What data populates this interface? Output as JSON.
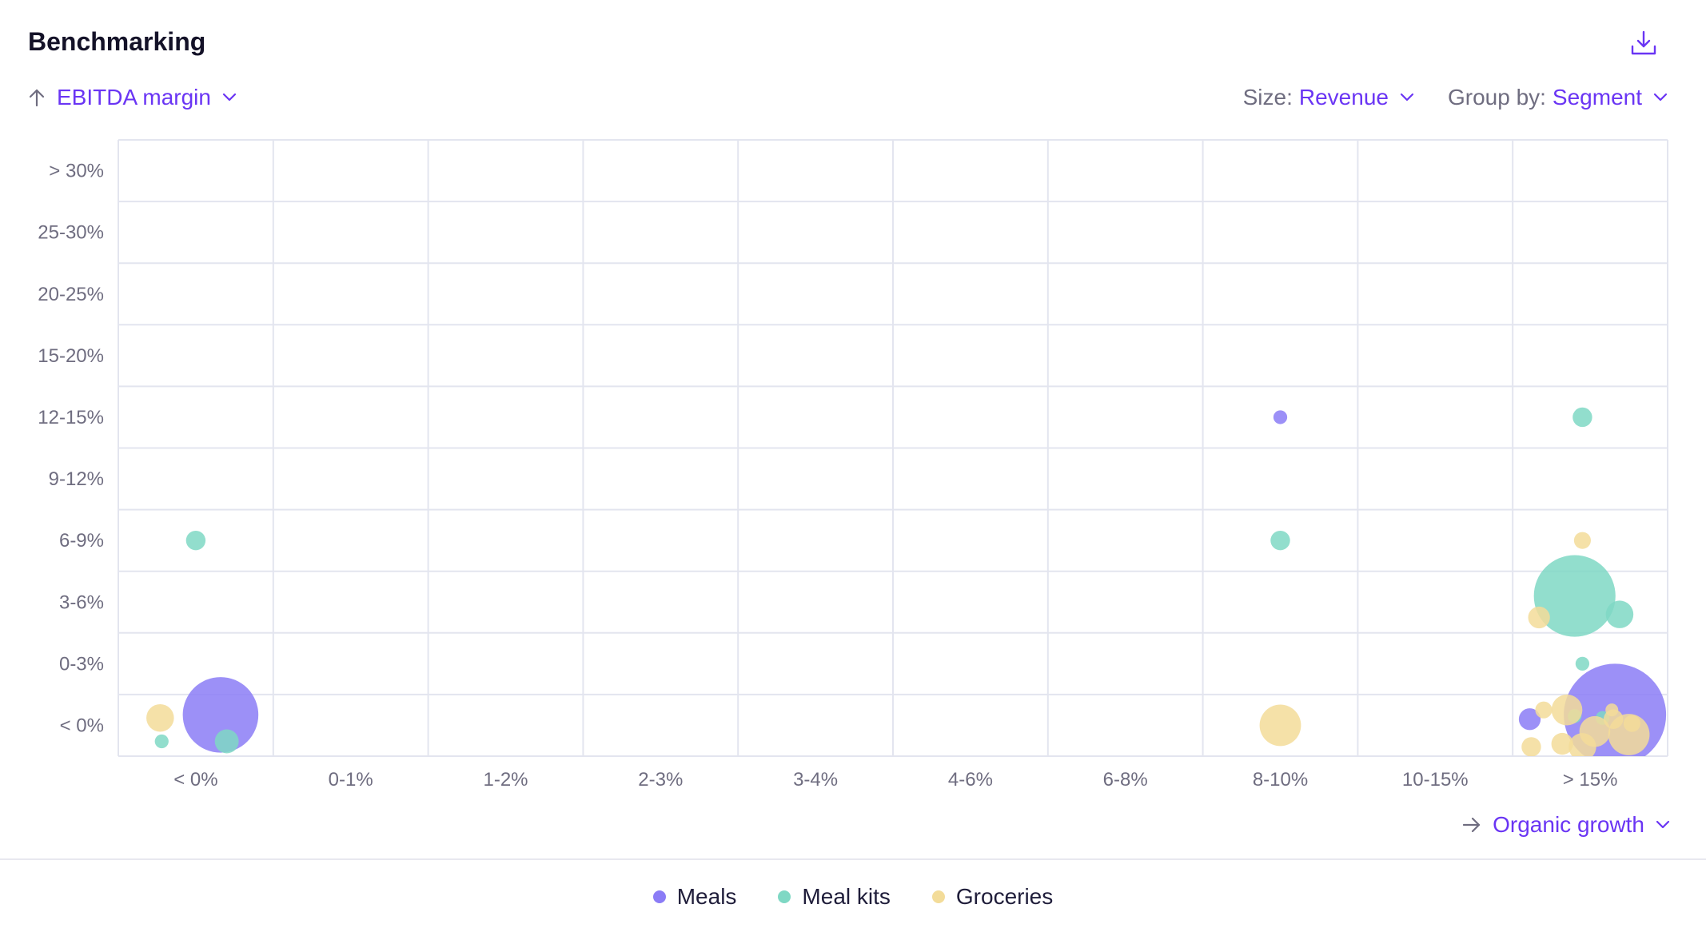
{
  "header": {
    "title": "Benchmarking",
    "download_icon": "download-icon"
  },
  "controls": {
    "y_axis_metric": "EBITDA margin",
    "size_label": "Size:",
    "size_value": "Revenue",
    "group_label": "Group by:",
    "group_value": "Segment",
    "x_axis_metric": "Organic growth"
  },
  "colors": {
    "accent": "#6a35f4",
    "Meals": "#8b7cf6",
    "Meal kits": "#7fd8c4",
    "Groceries": "#f3dc99",
    "grid": "#e3e5ef"
  },
  "chart_data": {
    "type": "scatter",
    "title": "",
    "xlabel": "Organic growth",
    "ylabel": "EBITDA margin",
    "size_metric": "Revenue",
    "categories_x": [
      "< 0%",
      "0-1%",
      "1-2%",
      "2-3%",
      "3-4%",
      "4-6%",
      "6-8%",
      "8-10%",
      "10-15%",
      "> 15%"
    ],
    "categories_y": [
      "< 0%",
      "0-3%",
      "3-6%",
      "6-9%",
      "9-12%",
      "12-15%",
      "15-20%",
      "20-25%",
      "25-30%",
      "> 30%"
    ],
    "grid": true,
    "legend_position": "bottom-center",
    "series": [
      {
        "name": "Meals",
        "points": [
          {
            "x": "< 0%",
            "y": "< 0%",
            "dx": 0.16,
            "dy": 0.17,
            "size": 60
          },
          {
            "x": "8-10%",
            "y": "12-15%",
            "dx": 0.0,
            "dy": 0.0,
            "size": 2
          },
          {
            "x": "> 15%",
            "y": "< 0%",
            "dx": 0.16,
            "dy": 0.17,
            "size": 110
          },
          {
            "x": "> 15%",
            "y": "< 0%",
            "dx": -0.39,
            "dy": 0.1,
            "size": 5
          }
        ]
      },
      {
        "name": "Meal kits",
        "points": [
          {
            "x": "< 0%",
            "y": "6-9%",
            "dx": 0.0,
            "dy": 0.0,
            "size": 4
          },
          {
            "x": "< 0%",
            "y": "< 0%",
            "dx": -0.22,
            "dy": -0.26,
            "size": 2
          },
          {
            "x": "< 0%",
            "y": "< 0%",
            "dx": 0.2,
            "dy": -0.26,
            "size": 6
          },
          {
            "x": "8-10%",
            "y": "6-9%",
            "dx": 0.0,
            "dy": 0.0,
            "size": 4
          },
          {
            "x": "> 15%",
            "y": "12-15%",
            "dx": -0.05,
            "dy": 0.0,
            "size": 4
          },
          {
            "x": "> 15%",
            "y": "3-6%",
            "dx": -0.1,
            "dy": 0.1,
            "size": 70
          },
          {
            "x": "> 15%",
            "y": "3-6%",
            "dx": 0.19,
            "dy": -0.2,
            "size": 8
          },
          {
            "x": "> 15%",
            "y": "0-3%",
            "dx": -0.05,
            "dy": 0.0,
            "size": 2
          },
          {
            "x": "> 15%",
            "y": "< 0%",
            "dx": -0.1,
            "dy": 0.15,
            "size": 2
          },
          {
            "x": "> 15%",
            "y": "< 0%",
            "dx": 0.08,
            "dy": 0.12,
            "size": 2
          }
        ]
      },
      {
        "name": "Groceries",
        "points": [
          {
            "x": "< 0%",
            "y": "< 0%",
            "dx": -0.23,
            "dy": 0.12,
            "size": 8
          },
          {
            "x": "8-10%",
            "y": "< 0%",
            "dx": 0.0,
            "dy": 0.0,
            "size": 18
          },
          {
            "x": "> 15%",
            "y": "6-9%",
            "dx": -0.05,
            "dy": 0.0,
            "size": 3
          },
          {
            "x": "> 15%",
            "y": "3-6%",
            "dx": -0.33,
            "dy": -0.25,
            "size": 5
          },
          {
            "x": "> 15%",
            "y": "< 0%",
            "dx": -0.15,
            "dy": 0.25,
            "size": 10
          },
          {
            "x": "> 15%",
            "y": "< 0%",
            "dx": -0.3,
            "dy": 0.25,
            "size": 3
          },
          {
            "x": "> 15%",
            "y": "< 0%",
            "dx": 0.03,
            "dy": -0.1,
            "size": 10
          },
          {
            "x": "> 15%",
            "y": "< 0%",
            "dx": 0.25,
            "dy": -0.15,
            "size": 18
          },
          {
            "x": "> 15%",
            "y": "< 0%",
            "dx": 0.15,
            "dy": 0.1,
            "size": 4
          },
          {
            "x": "> 15%",
            "y": "< 0%",
            "dx": -0.38,
            "dy": -0.35,
            "size": 4
          },
          {
            "x": "> 15%",
            "y": "< 0%",
            "dx": -0.18,
            "dy": -0.3,
            "size": 5
          },
          {
            "x": "> 15%",
            "y": "< 0%",
            "dx": -0.05,
            "dy": -0.35,
            "size": 8
          },
          {
            "x": "> 15%",
            "y": "< 0%",
            "dx": 0.27,
            "dy": 0.03,
            "size": 3
          },
          {
            "x": "> 15%",
            "y": "< 0%",
            "dx": 0.14,
            "dy": 0.25,
            "size": 1
          }
        ]
      }
    ]
  },
  "legend": {
    "items": [
      {
        "label": "Meals",
        "color": "#8b7cf6"
      },
      {
        "label": "Meal kits",
        "color": "#7fd8c4"
      },
      {
        "label": "Groceries",
        "color": "#f3dc99"
      }
    ]
  }
}
